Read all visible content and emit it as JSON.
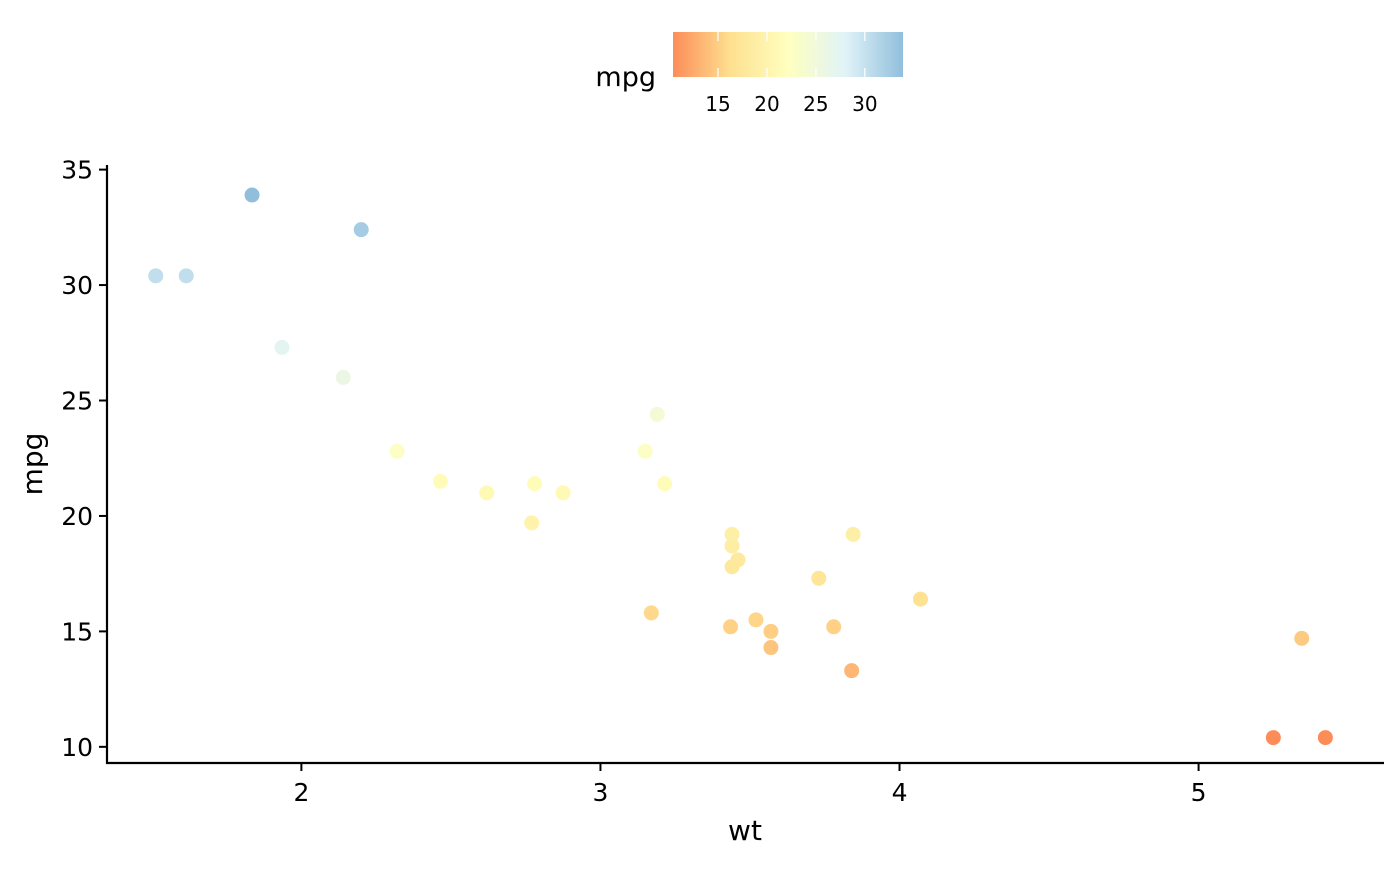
{
  "chart_data": {
    "type": "scatter",
    "title": "",
    "xlabel": "wt",
    "ylabel": "mpg",
    "xlim": [
      1.35,
      5.62
    ],
    "ylim": [
      9.3,
      35.2
    ],
    "x_ticks": [
      2,
      3,
      4,
      5
    ],
    "y_ticks": [
      10,
      15,
      20,
      25,
      30,
      35
    ],
    "grid": false,
    "legend": {
      "title": "mpg",
      "placement": "top",
      "type": "continuous-colorbar",
      "range": [
        10.4,
        33.9
      ],
      "ticks": [
        15,
        20,
        25,
        30
      ],
      "palette": [
        "#fc8d59",
        "#fee090",
        "#ffffbf",
        "#e0f3f8",
        "#91bfdb"
      ]
    },
    "point_color_mapping": "mpg",
    "points": [
      {
        "x": 2.62,
        "y": 21.0
      },
      {
        "x": 2.875,
        "y": 21.0
      },
      {
        "x": 2.32,
        "y": 22.8
      },
      {
        "x": 3.215,
        "y": 21.4
      },
      {
        "x": 3.44,
        "y": 18.7
      },
      {
        "x": 3.46,
        "y": 18.1
      },
      {
        "x": 3.57,
        "y": 14.3
      },
      {
        "x": 3.19,
        "y": 24.4
      },
      {
        "x": 3.15,
        "y": 22.8
      },
      {
        "x": 3.44,
        "y": 19.2
      },
      {
        "x": 3.44,
        "y": 17.8
      },
      {
        "x": 4.07,
        "y": 16.4
      },
      {
        "x": 3.73,
        "y": 17.3
      },
      {
        "x": 3.78,
        "y": 15.2
      },
      {
        "x": 5.25,
        "y": 10.4
      },
      {
        "x": 5.424,
        "y": 10.4
      },
      {
        "x": 5.345,
        "y": 14.7
      },
      {
        "x": 2.2,
        "y": 32.4
      },
      {
        "x": 1.615,
        "y": 30.4
      },
      {
        "x": 1.835,
        "y": 33.9
      },
      {
        "x": 2.465,
        "y": 21.5
      },
      {
        "x": 3.52,
        "y": 15.5
      },
      {
        "x": 3.435,
        "y": 15.2
      },
      {
        "x": 3.84,
        "y": 13.3
      },
      {
        "x": 3.845,
        "y": 19.2
      },
      {
        "x": 1.935,
        "y": 27.3
      },
      {
        "x": 2.14,
        "y": 26.0
      },
      {
        "x": 1.513,
        "y": 30.4
      },
      {
        "x": 3.17,
        "y": 15.8
      },
      {
        "x": 2.77,
        "y": 19.7
      },
      {
        "x": 3.57,
        "y": 15.0
      },
      {
        "x": 2.78,
        "y": 21.4
      }
    ]
  }
}
